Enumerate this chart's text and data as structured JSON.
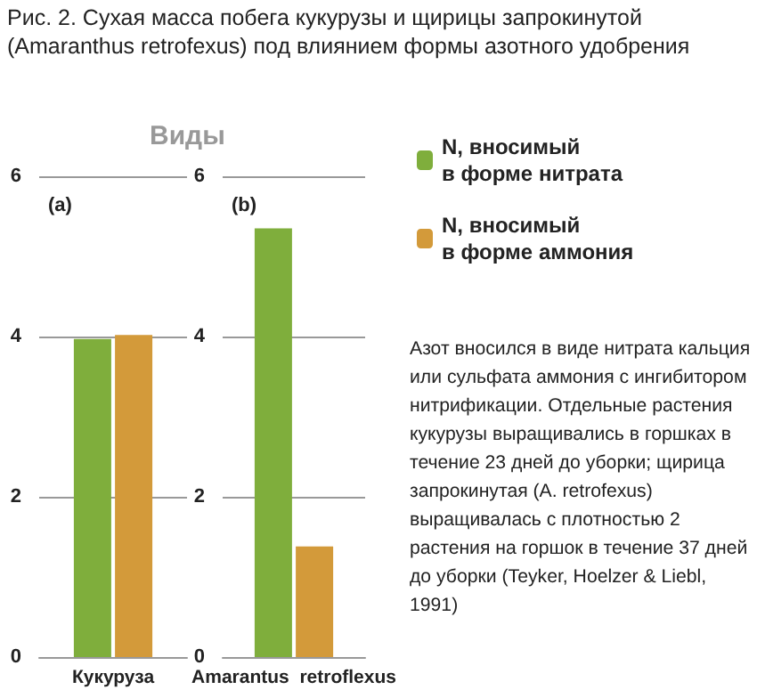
{
  "chart_data": [
    {
      "type": "bar",
      "title": "(a)",
      "annotations": [
        "Рис. 2. Сухая масса побега кукурузы и щирицы запрокинутой (Amaranthus retrofexus) под влиянием формы азотного удобрения",
        "Виды"
      ],
      "categories": [
        "Кукуруза"
      ],
      "series": [
        {
          "color": "#7fae3c",
          "values": [
            3.97
          ]
        },
        {
          "color": "#d39a3a",
          "values": [
            4.02
          ]
        }
      ],
      "ylim": [
        0,
        6
      ],
      "yticks": [
        0,
        2,
        4,
        6
      ],
      "grid": "y"
    },
    {
      "type": "bar",
      "title": "(b)",
      "annotations": [
        "Азот вносился в виде нитрата кальция или сульфата аммония с ингибитором нитрификации. Отдельные растения кукурузы выращивались в горшках в течение 23 дней до уборки; щирица запрокинутая (A. retrofexus) выращивалась с плотностью 2 растения на горшок в течение 37 дней до уборки (Teyker, Hoelzer & Liebl, 1991)"
      ],
      "categories": [
        "Amarantus  retroflexus"
      ],
      "series": [
        {
          "name": "N, вносимый в форме нитрата",
          "color": "#7fae3c",
          "values": [
            5.35
          ]
        },
        {
          "name": "N, вносимый в форме аммония",
          "color": "#d39a3a",
          "values": [
            1.38
          ]
        }
      ],
      "ylim": [
        0,
        6
      ],
      "yticks": [
        0,
        2,
        4,
        6
      ],
      "grid": "y",
      "legend": "right"
    }
  ]
}
